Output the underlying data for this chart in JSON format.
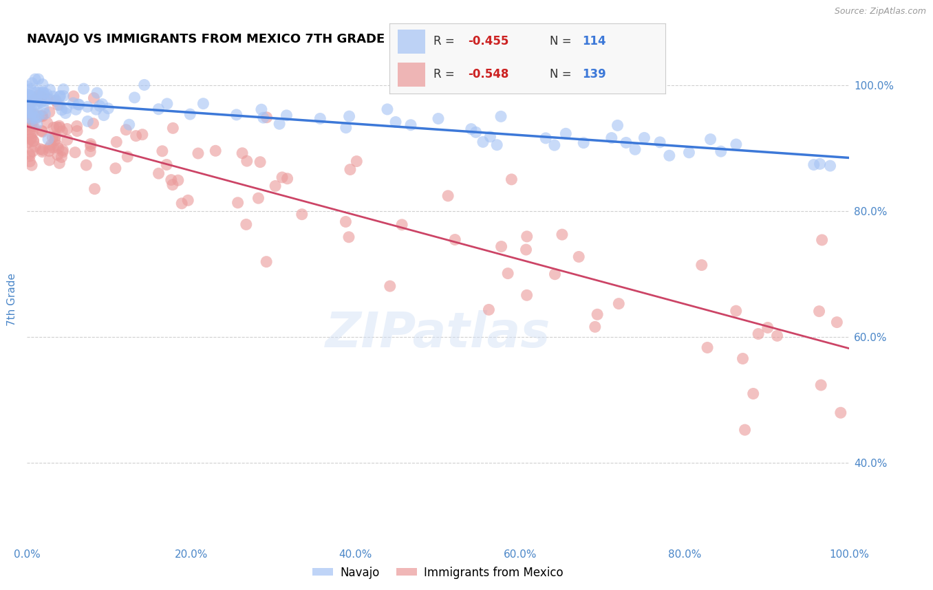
{
  "title": "NAVAJO VS IMMIGRANTS FROM MEXICO 7TH GRADE CORRELATION CHART",
  "source": "Source: ZipAtlas.com",
  "ylabel": "7th Grade",
  "xlim": [
    0.0,
    1.0
  ],
  "ylim": [
    0.27,
    1.05
  ],
  "xticks": [
    0.0,
    0.2,
    0.4,
    0.6,
    0.8,
    1.0
  ],
  "yticks": [
    0.4,
    0.6,
    0.8,
    1.0
  ],
  "xtick_labels": [
    "0.0%",
    "20.0%",
    "40.0%",
    "60.0%",
    "80.0%",
    "100.0%"
  ],
  "ytick_labels": [
    "40.0%",
    "60.0%",
    "80.0%",
    "100.0%"
  ],
  "navajo_color": "#a4c2f4",
  "mexico_color": "#ea9999",
  "navajo_line_color": "#3c78d8",
  "mexico_line_color": "#cc4466",
  "navajo_R": -0.455,
  "navajo_N": 114,
  "mexico_R": -0.548,
  "mexico_N": 139,
  "background_color": "#ffffff",
  "grid_color": "#bbbbbb",
  "axis_label_color": "#4a86c8",
  "title_color": "#000000",
  "nav_trend_x0": 0.0,
  "nav_trend_x1": 1.0,
  "nav_trend_y0": 0.975,
  "nav_trend_y1": 0.885,
  "mex_trend_x0": 0.0,
  "mex_trend_x1": 1.0,
  "mex_trend_y0": 0.935,
  "mex_trend_y1": 0.582
}
